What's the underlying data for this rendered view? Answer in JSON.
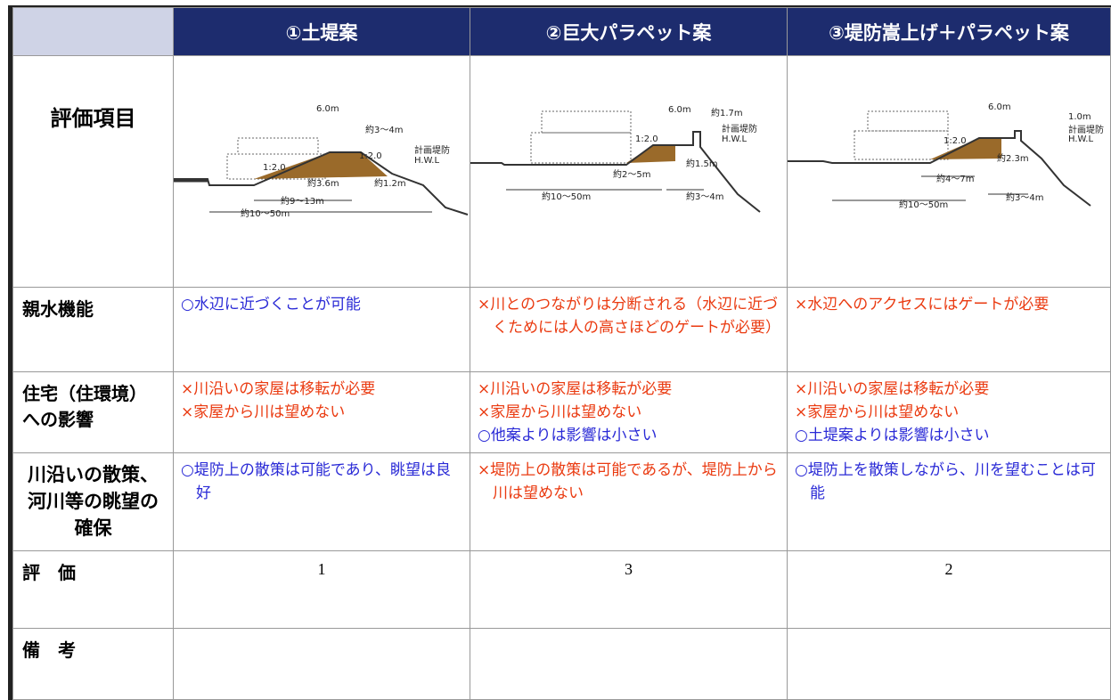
{
  "header": {
    "columns": [
      "①土堤案",
      "②巨大パラペット案",
      "③堤防嵩上げ＋パラペット案"
    ]
  },
  "diagram_row": {
    "label": "評価項目",
    "diagrams": [
      {
        "labels": [
          "6.0m",
          "約3～4m",
          "計画堤防",
          "H.W.L",
          "1:2.0",
          "1:2.0",
          "約3.6m",
          "約1.2m",
          "約9～13m",
          "約10～50m"
        ]
      },
      {
        "labels": [
          "6.0m",
          "約1.7m",
          "計画堤防",
          "H.W.L",
          "1:2.0",
          "約2～5m",
          "約1.5m",
          "約10～50m",
          "約3～4m"
        ]
      },
      {
        "labels": [
          "6.0m",
          "1.0m",
          "計画堤防",
          "H.W.L",
          "1:2.0",
          "約2.3m",
          "約4～7m",
          "約10～50m",
          "約3～4m"
        ]
      }
    ]
  },
  "table": {
    "rows": [
      {
        "label": "親水機能",
        "cells": [
          [
            {
              "text": "○水辺に近づくことが可能",
              "color": "#2a2ad6"
            }
          ],
          [
            {
              "text": "×川とのつながりは分断される（水辺に近づくためには人の高さほどのゲートが必要）",
              "color": "#ea3a10"
            }
          ],
          [
            {
              "text": "×水辺へのアクセスにはゲートが必要",
              "color": "#ea3a10"
            }
          ]
        ]
      },
      {
        "label": "住宅（住環境）への影響",
        "cells": [
          [
            {
              "text": "×川沿いの家屋は移転が必要",
              "color": "#ea3a10"
            },
            {
              "text": "×家屋から川は望めない",
              "color": "#ea3a10"
            }
          ],
          [
            {
              "text": "×川沿いの家屋は移転が必要",
              "color": "#ea3a10"
            },
            {
              "text": "×家屋から川は望めない",
              "color": "#ea3a10"
            },
            {
              "text": "○他案よりは影響は小さい",
              "color": "#2a2ad6"
            }
          ],
          [
            {
              "text": "×川沿いの家屋は移転が必要",
              "color": "#ea3a10"
            },
            {
              "text": "×家屋から川は望めない",
              "color": "#ea3a10"
            },
            {
              "text": "○土堤案よりは影響は小さい",
              "color": "#2a2ad6"
            }
          ]
        ]
      },
      {
        "label": "川沿いの散策、河川等の眺望の確保",
        "cells": [
          [
            {
              "text": "○堤防上の散策は可能であり、眺望は良好",
              "color": "#2a2ad6"
            }
          ],
          [
            {
              "text": "×堤防上の散策は可能であるが、堤防上から川は望めない",
              "color": "#ea3a10"
            }
          ],
          [
            {
              "text": "○堤防上を散策しながら、川を望むことは可能",
              "color": "#2a2ad6"
            }
          ]
        ]
      }
    ]
  },
  "evaluation": {
    "label": "評　価",
    "values": [
      "1",
      "3",
      "2"
    ]
  },
  "remarks": {
    "label": "備　考"
  }
}
